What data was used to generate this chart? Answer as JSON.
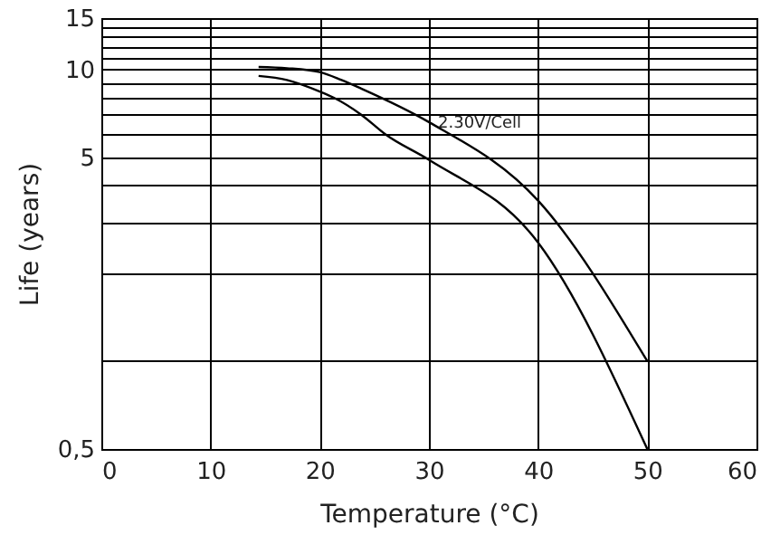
{
  "chart_data": {
    "type": "line",
    "xlabel": "Temperature (°C)",
    "ylabel": "Life (years)",
    "log": "y",
    "grid": true,
    "marker": "none",
    "line_style": "solid",
    "xlim": [
      0,
      60
    ],
    "xticks": [
      0,
      10,
      20,
      30,
      40,
      50,
      60
    ],
    "ylim": [
      0.5,
      15
    ],
    "yticks": [
      {
        "value": 0.5,
        "label": "0,5"
      },
      {
        "value": 1,
        "label": null
      },
      {
        "value": 2,
        "label": null
      },
      {
        "value": 3,
        "label": null
      },
      {
        "value": 4,
        "label": null
      },
      5,
      {
        "value": 6,
        "label": null
      },
      {
        "value": 7,
        "label": null
      },
      {
        "value": 8,
        "label": null
      },
      {
        "value": 9,
        "label": null
      },
      10,
      {
        "value": 11,
        "label": null
      },
      {
        "value": 12,
        "label": null
      },
      {
        "value": 13,
        "label": null
      },
      {
        "value": 14,
        "label": null
      },
      15
    ],
    "series": [
      {
        "color": "#000000",
        "x": [
          14.4,
          17,
          20,
          22,
          23.8,
          30,
          40,
          50
        ],
        "values": [
          10.2,
          10.1,
          9.8,
          9.2,
          8.6,
          6.6,
          3.55,
          1.0
        ]
      },
      {
        "color": "#000000",
        "x": [
          14.4,
          17,
          20,
          21.3,
          23.8,
          26,
          30,
          40,
          50
        ],
        "values": [
          9.5,
          9.2,
          8.4,
          8,
          7,
          6,
          4.9,
          2.55,
          0.5
        ]
      }
    ],
    "annotations": [
      {
        "text": "2.30V/Cell",
        "x": 30,
        "y": 6.6
      }
    ]
  }
}
